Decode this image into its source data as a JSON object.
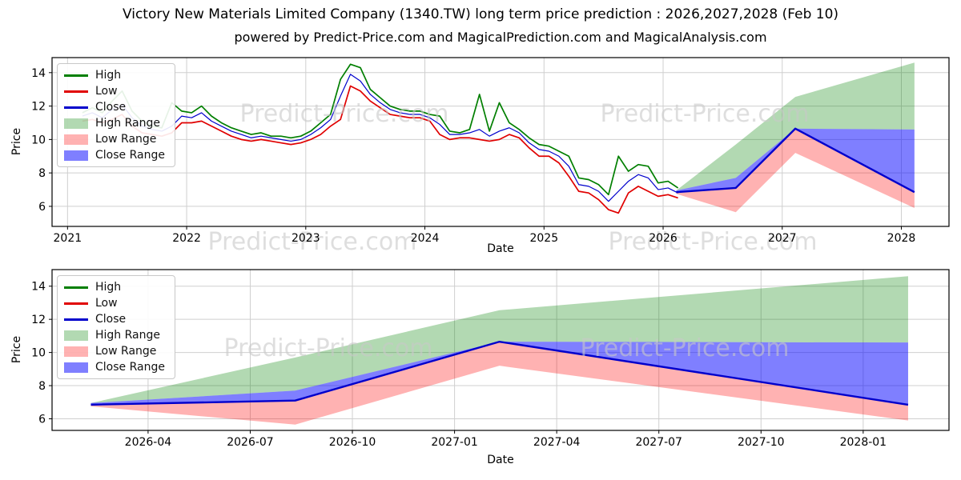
{
  "title": "Victory New Materials Limited Company (1340.TW) long term price prediction : 2026,2027,2028 (Feb 10)",
  "subtitle": "powered by Predict-Price.com and MagicalPrediction.com and MagicalAnalysis.com",
  "watermark": "Predict-Price.com",
  "colors": {
    "high": "#007f00",
    "low": "#e00000",
    "close": "#0000cc",
    "high_range": "rgba(0,128,0,0.30)",
    "low_range": "rgba(255,0,0,0.30)",
    "close_range": "rgba(0,0,255,0.50)",
    "grid": "#cfcfcf",
    "spine": "#000000",
    "watermark": "#c9c9c9"
  },
  "legend": [
    {
      "label": "High",
      "swatch": "line",
      "color": "#007f00"
    },
    {
      "label": "Low",
      "swatch": "line",
      "color": "#e00000"
    },
    {
      "label": "Close",
      "swatch": "line",
      "color": "#0000cc"
    },
    {
      "label": "High Range",
      "swatch": "patch",
      "color": "rgba(0,128,0,0.30)"
    },
    {
      "label": "Low Range",
      "swatch": "patch",
      "color": "rgba(255,0,0,0.30)"
    },
    {
      "label": "Close Range",
      "swatch": "patch",
      "color": "rgba(0,0,255,0.50)"
    }
  ],
  "chart_data": [
    {
      "type": "line",
      "name": "full-history-and-prediction",
      "xlabel": "Date",
      "ylabel": "Price",
      "grid": true,
      "legend_position": "upper-left",
      "xlim": [
        2020.87,
        2028.4
      ],
      "ylim": [
        4.8,
        14.9
      ],
      "x_ticks": [
        {
          "v": 2021,
          "label": "2021"
        },
        {
          "v": 2022,
          "label": "2022"
        },
        {
          "v": 2023,
          "label": "2023"
        },
        {
          "v": 2024,
          "label": "2024"
        },
        {
          "v": 2025,
          "label": "2025"
        },
        {
          "v": 2026,
          "label": "2026"
        },
        {
          "v": 2027,
          "label": "2027"
        },
        {
          "v": 2028,
          "label": "2028"
        }
      ],
      "y_ticks": [
        6,
        8,
        10,
        12,
        14
      ],
      "history": {
        "dates": [
          "2021-02",
          "2021-03",
          "2021-04",
          "2021-05",
          "2021-06",
          "2021-07",
          "2021-08",
          "2021-09",
          "2021-10",
          "2021-11",
          "2021-12",
          "2022-01",
          "2022-02",
          "2022-03",
          "2022-04",
          "2022-05",
          "2022-06",
          "2022-07",
          "2022-08",
          "2022-09",
          "2022-10",
          "2022-11",
          "2022-12",
          "2023-01",
          "2023-02",
          "2023-03",
          "2023-04",
          "2023-05",
          "2023-06",
          "2023-07",
          "2023-08",
          "2023-09",
          "2023-10",
          "2023-11",
          "2023-12",
          "2024-01",
          "2024-02",
          "2024-03",
          "2024-04",
          "2024-05",
          "2024-06",
          "2024-07",
          "2024-08",
          "2024-09",
          "2024-10",
          "2024-11",
          "2024-12",
          "2025-01",
          "2025-02",
          "2025-03",
          "2025-04",
          "2025-05",
          "2025-06",
          "2025-07",
          "2025-08",
          "2025-09",
          "2025-10",
          "2025-11",
          "2025-12",
          "2026-01",
          "2026-02"
        ],
        "high": [
          11.6,
          11.9,
          11.6,
          12.3,
          12.9,
          11.7,
          11.1,
          10.8,
          10.7,
          12.2,
          11.7,
          11.6,
          12.0,
          11.4,
          11.0,
          10.7,
          10.5,
          10.3,
          10.4,
          10.2,
          10.2,
          10.1,
          10.2,
          10.5,
          11.0,
          11.5,
          13.6,
          14.5,
          14.3,
          13.0,
          12.5,
          12.0,
          11.8,
          11.7,
          11.7,
          11.5,
          11.4,
          10.5,
          10.4,
          10.6,
          12.7,
          10.5,
          12.2,
          11.0,
          10.6,
          10.1,
          9.7,
          9.6,
          9.3,
          9.0,
          7.7,
          7.6,
          7.3,
          6.7,
          9.0,
          8.1,
          8.5,
          8.4,
          7.4,
          7.5,
          7.1
        ],
        "low": [
          11.1,
          11.2,
          11.0,
          11.2,
          11.5,
          10.8,
          10.4,
          10.3,
          10.2,
          10.4,
          11.0,
          11.0,
          11.1,
          10.8,
          10.5,
          10.2,
          10.0,
          9.9,
          10.0,
          9.9,
          9.8,
          9.7,
          9.8,
          10.0,
          10.3,
          10.8,
          11.2,
          13.2,
          12.9,
          12.3,
          11.9,
          11.5,
          11.4,
          11.3,
          11.3,
          11.1,
          10.3,
          10.0,
          10.1,
          10.1,
          10.0,
          9.9,
          10.0,
          10.3,
          10.1,
          9.5,
          9.0,
          9.0,
          8.6,
          7.8,
          6.9,
          6.8,
          6.4,
          5.8,
          5.6,
          6.8,
          7.2,
          6.9,
          6.6,
          6.7,
          6.5
        ],
        "close": [
          11.4,
          11.6,
          11.3,
          11.8,
          12.1,
          11.3,
          10.8,
          10.6,
          10.5,
          10.8,
          11.4,
          11.3,
          11.6,
          11.1,
          10.8,
          10.5,
          10.3,
          10.1,
          10.2,
          10.1,
          10.0,
          9.9,
          10.0,
          10.3,
          10.7,
          11.2,
          12.6,
          13.9,
          13.5,
          12.7,
          12.2,
          11.8,
          11.6,
          11.5,
          11.5,
          11.3,
          10.9,
          10.3,
          10.3,
          10.4,
          10.6,
          10.2,
          10.5,
          10.7,
          10.4,
          9.8,
          9.4,
          9.3,
          9.0,
          8.4,
          7.3,
          7.2,
          6.9,
          6.3,
          6.9,
          7.5,
          7.9,
          7.7,
          7.0,
          7.1,
          6.8
        ]
      },
      "prediction": {
        "dates": [
          "2026-02-10",
          "2026-08-10",
          "2027-02-10",
          "2028-02-10"
        ],
        "x": [
          2026.11,
          2026.61,
          2027.11,
          2028.11
        ],
        "close": [
          6.85,
          7.1,
          10.65,
          6.85
        ],
        "close_upper": [
          6.95,
          7.7,
          10.65,
          10.6
        ],
        "high_upper": [
          6.95,
          9.7,
          12.55,
          14.6
        ],
        "low_lower": [
          6.75,
          5.65,
          9.2,
          5.9
        ]
      }
    },
    {
      "type": "line",
      "name": "prediction-detail",
      "xlabel": "Date",
      "ylabel": "Price",
      "grid": true,
      "legend_position": "upper-left",
      "xlim": [
        2026.015,
        2028.21
      ],
      "ylim": [
        5.3,
        15.0
      ],
      "x_ticks": [
        {
          "v": 2026.25,
          "label": "2026-04"
        },
        {
          "v": 2026.5,
          "label": "2026-07"
        },
        {
          "v": 2026.75,
          "label": "2026-10"
        },
        {
          "v": 2027.0,
          "label": "2027-01"
        },
        {
          "v": 2027.25,
          "label": "2027-04"
        },
        {
          "v": 2027.5,
          "label": "2027-07"
        },
        {
          "v": 2027.75,
          "label": "2027-10"
        },
        {
          "v": 2028.0,
          "label": "2028-01"
        }
      ],
      "y_ticks": [
        6,
        8,
        10,
        12,
        14
      ],
      "prediction": {
        "dates": [
          "2026-02-10",
          "2026-08-10",
          "2027-02-10",
          "2028-02-10"
        ],
        "x": [
          2026.11,
          2026.61,
          2027.11,
          2028.11
        ],
        "close": [
          6.85,
          7.1,
          10.65,
          6.85
        ],
        "close_upper": [
          6.95,
          7.7,
          10.65,
          10.6
        ],
        "high_upper": [
          6.95,
          9.7,
          12.55,
          14.6
        ],
        "low_lower": [
          6.75,
          5.65,
          9.2,
          5.9
        ]
      }
    }
  ]
}
